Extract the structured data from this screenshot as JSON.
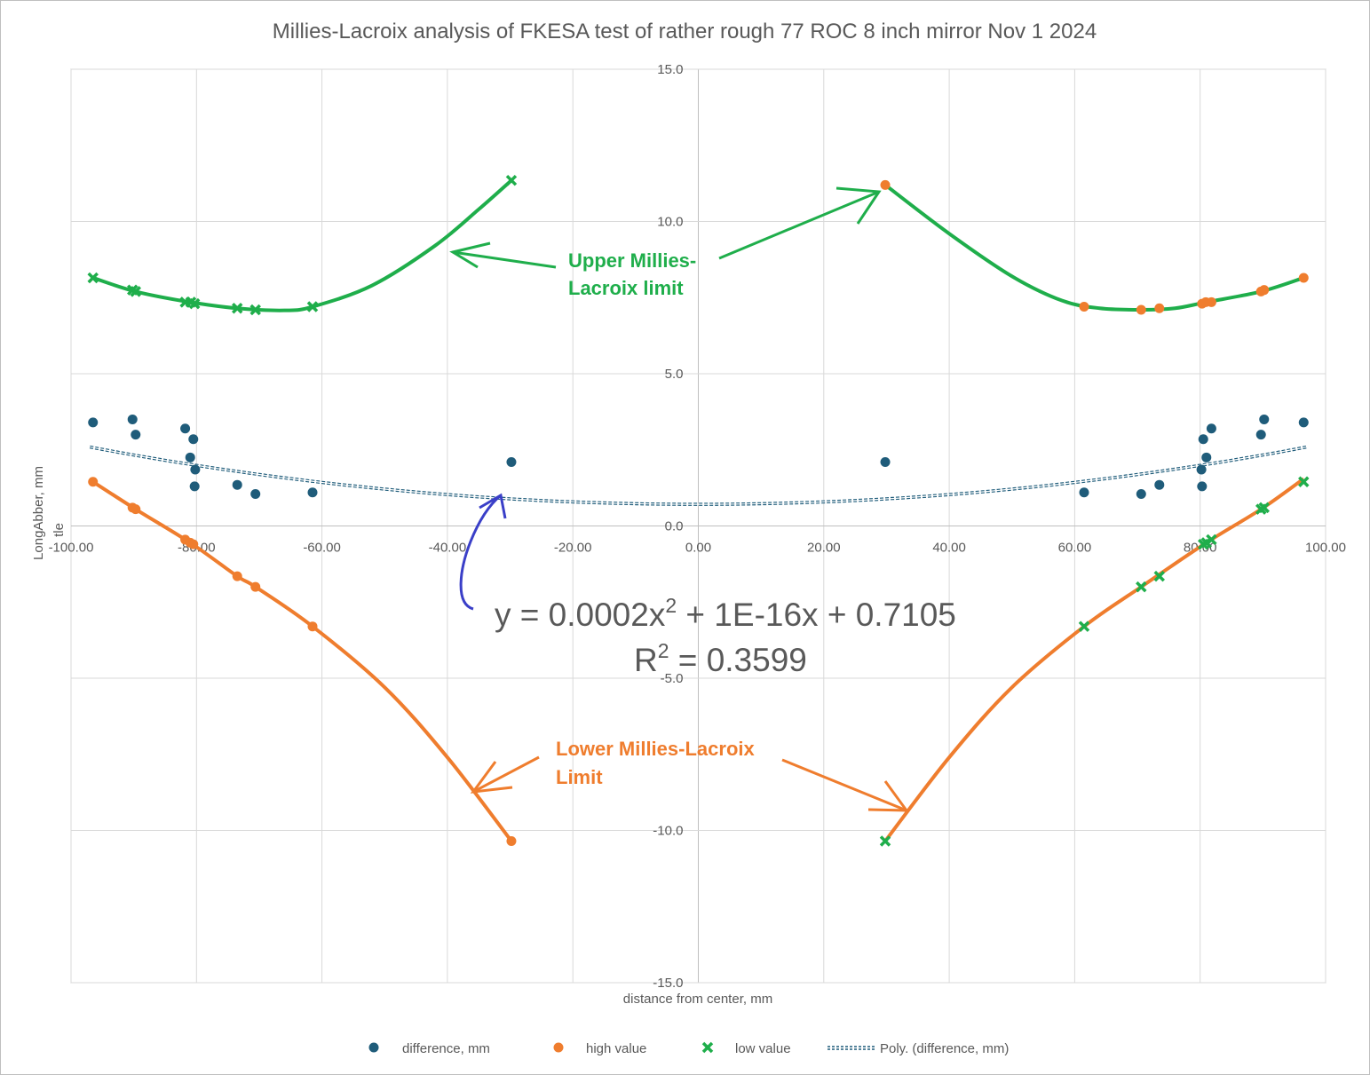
{
  "chart_data": {
    "type": "scatter",
    "title": "Millies-Lacroix  analysis of FKESA test of  rather rough 77 ROC 8 inch mirror Nov 1 2024",
    "xlabel": "distance from center, mm",
    "ylabel": "LongAbber, mm",
    "ylabel_residue": "tle",
    "xlim": [
      -100,
      100
    ],
    "ylim": [
      -15,
      15
    ],
    "x_ticks": [
      -100,
      -80,
      -60,
      -40,
      -20,
      0,
      20,
      40,
      60,
      80,
      100
    ],
    "x_tick_labels": [
      "-100.00",
      "-80.00",
      "-60.00",
      "-40.00",
      "-20.00",
      "0.00",
      "20.00",
      "40.00",
      "60.00",
      "80.00",
      "100.00"
    ],
    "y_ticks": [
      -15,
      -10,
      -5,
      0,
      5,
      10,
      15
    ],
    "y_tick_labels": [
      "-15.0",
      "-10.0",
      "-5.0",
      "0.0",
      "5.0",
      "10.0",
      "15.0"
    ],
    "grid": true,
    "legend_position": "bottom",
    "series": [
      {
        "name": "difference, mm",
        "marker": "circle",
        "color": "#1f5c7a",
        "points": [
          [
            -96.5,
            3.4
          ],
          [
            -90.2,
            3.5
          ],
          [
            -89.7,
            3.0
          ],
          [
            -81.8,
            3.2
          ],
          [
            -81.0,
            2.25
          ],
          [
            -80.5,
            2.85
          ],
          [
            -80.2,
            1.85
          ],
          [
            -80.3,
            1.3
          ],
          [
            -73.5,
            1.35
          ],
          [
            -70.6,
            1.05
          ],
          [
            -61.5,
            1.1
          ],
          [
            -29.8,
            2.1
          ],
          [
            29.8,
            2.1
          ],
          [
            61.5,
            1.1
          ],
          [
            70.6,
            1.05
          ],
          [
            73.5,
            1.35
          ],
          [
            80.3,
            1.3
          ],
          [
            80.2,
            1.85
          ],
          [
            80.5,
            2.85
          ],
          [
            81.0,
            2.25
          ],
          [
            81.8,
            3.2
          ],
          [
            89.7,
            3.0
          ],
          [
            90.2,
            3.5
          ],
          [
            96.5,
            3.4
          ]
        ]
      },
      {
        "name": "high value",
        "marker": "circle",
        "color": "#ef7d2e",
        "points": [
          [
            -96.5,
            1.45
          ],
          [
            -90.2,
            0.6
          ],
          [
            -89.7,
            0.55
          ],
          [
            -81.8,
            -0.45
          ],
          [
            -81.0,
            -0.55
          ],
          [
            -80.5,
            -0.6
          ],
          [
            -73.5,
            -1.65
          ],
          [
            -70.6,
            -2.0
          ],
          [
            -61.5,
            -3.3
          ],
          [
            -29.8,
            -10.35
          ],
          [
            29.8,
            11.2
          ],
          [
            61.5,
            7.2
          ],
          [
            70.6,
            7.1
          ],
          [
            73.5,
            7.15
          ],
          [
            80.3,
            7.3
          ],
          [
            80.9,
            7.35
          ],
          [
            81.8,
            7.35
          ],
          [
            89.7,
            7.7
          ],
          [
            90.2,
            7.75
          ],
          [
            96.5,
            8.15
          ]
        ]
      },
      {
        "name": "low value",
        "marker": "x",
        "color": "#1fae4b",
        "points": [
          [
            -96.5,
            8.15
          ],
          [
            -90.2,
            7.75
          ],
          [
            -89.7,
            7.7
          ],
          [
            -81.8,
            7.35
          ],
          [
            -80.9,
            7.35
          ],
          [
            -80.3,
            7.3
          ],
          [
            -73.5,
            7.15
          ],
          [
            -70.6,
            7.1
          ],
          [
            -61.5,
            7.2
          ],
          [
            -29.8,
            11.35
          ],
          [
            29.8,
            -10.35
          ],
          [
            61.5,
            -3.3
          ],
          [
            70.6,
            -2.0
          ],
          [
            73.5,
            -1.65
          ],
          [
            80.5,
            -0.6
          ],
          [
            81.0,
            -0.55
          ],
          [
            81.8,
            -0.45
          ],
          [
            89.7,
            0.55
          ],
          [
            90.2,
            0.6
          ],
          [
            96.5,
            1.45
          ]
        ]
      }
    ],
    "trendline": {
      "name": "Poly. (difference, mm)",
      "a": 0.0002,
      "b": 0,
      "c": 0.7105,
      "x_range": [
        -97,
        97
      ],
      "color": "#1f5c7a",
      "equation_label": "y = 0.0002x",
      "equation_exp": "2",
      "equation_rest": " + 1E-16x + 0.7105",
      "r2_label": "R",
      "r2_exp": "2",
      "r2_rest": " = 0.3599"
    },
    "annotations": {
      "upper_line1": "Upper Millies-",
      "upper_line2": "Lacroix limit",
      "lower_line1": "Lower Millies-Lacroix",
      "lower_line2": "Limit"
    },
    "drawn_curves": {
      "upper_left": [
        [
          -96.5,
          8.15
        ],
        [
          -89.7,
          7.7
        ],
        [
          -81,
          7.35
        ],
        [
          -73.5,
          7.15
        ],
        [
          -66,
          7.08
        ],
        [
          -61.5,
          7.2
        ],
        [
          -52,
          7.9
        ],
        [
          -42,
          9.2
        ],
        [
          -35,
          10.4
        ],
        [
          -29.8,
          11.35
        ]
      ],
      "upper_right": [
        [
          29.8,
          11.2
        ],
        [
          40,
          9.6
        ],
        [
          50,
          8.2
        ],
        [
          58,
          7.4
        ],
        [
          64,
          7.15
        ],
        [
          70.6,
          7.1
        ],
        [
          76,
          7.15
        ],
        [
          81,
          7.35
        ],
        [
          89.7,
          7.7
        ],
        [
          96.5,
          8.15
        ]
      ],
      "lower_left": [
        [
          -96.5,
          1.45
        ],
        [
          -89.7,
          0.55
        ],
        [
          -81,
          -0.55
        ],
        [
          -73.5,
          -1.65
        ],
        [
          -70.6,
          -2.0
        ],
        [
          -61.5,
          -3.3
        ],
        [
          -50,
          -5.3
        ],
        [
          -40,
          -7.6
        ],
        [
          -29.8,
          -10.35
        ]
      ],
      "lower_right": [
        [
          29.8,
          -10.35
        ],
        [
          40,
          -7.6
        ],
        [
          50,
          -5.3
        ],
        [
          61.5,
          -3.3
        ],
        [
          70.6,
          -2.0
        ],
        [
          81,
          -0.55
        ],
        [
          89.7,
          0.55
        ],
        [
          96.5,
          1.55
        ]
      ]
    }
  },
  "colors": {
    "grid": "#d9d9d9",
    "axis": "#bfbfbf",
    "green": "#1fae4b",
    "orange": "#ef7d2e",
    "blue_arrow": "#3a3fc8"
  }
}
